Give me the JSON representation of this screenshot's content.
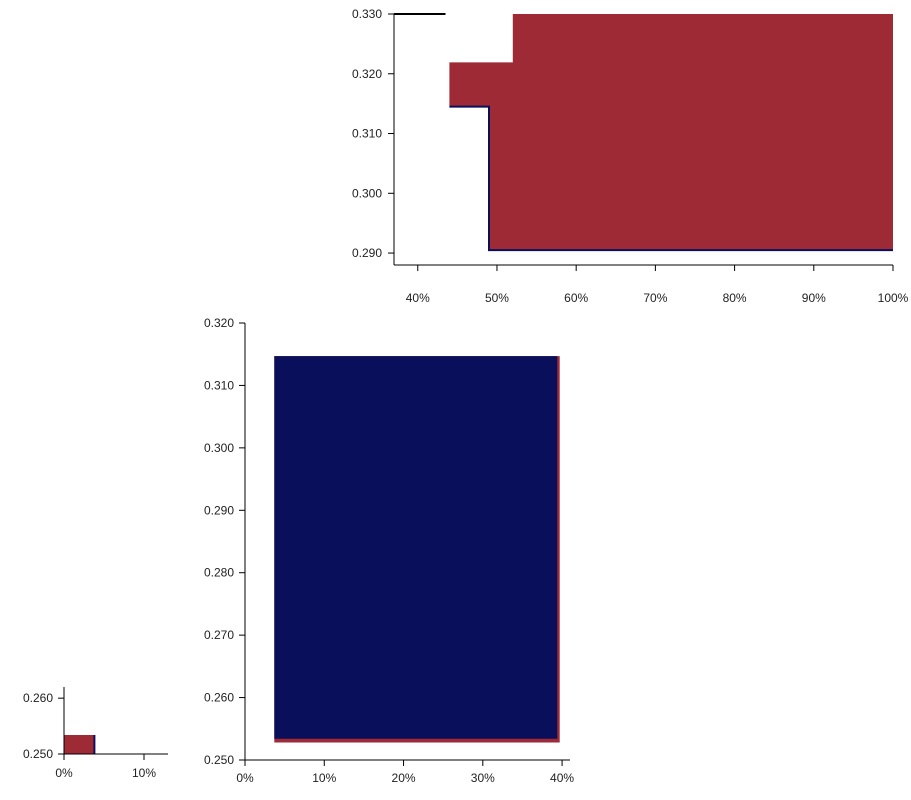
{
  "chart_data": [
    {
      "type": "area",
      "xlim": [
        0.37,
        1.0
      ],
      "ylim": [
        0.288,
        0.33
      ],
      "xticks": [
        0.4,
        0.5,
        0.6,
        0.7,
        0.8,
        0.9,
        1.0
      ],
      "xtick_labels": [
        "40%",
        "50%",
        "60%",
        "70%",
        "80%",
        "90%",
        "100%"
      ],
      "yticks": [
        0.29,
        0.3,
        0.31,
        0.32,
        0.33
      ],
      "ytick_labels": [
        "0.290",
        "0.300",
        "0.310",
        "0.320",
        "0.330"
      ],
      "grid": false,
      "regions": [
        {
          "color": "#9e2a36",
          "points": [
            [
              0.52,
              0.33
            ],
            [
              1.0,
              0.33
            ],
            [
              1.0,
              0.2905
            ],
            [
              0.49,
              0.2905
            ],
            [
              0.49,
              0.3145
            ],
            [
              0.44,
              0.3145
            ],
            [
              0.44,
              0.3219
            ],
            [
              0.52,
              0.3219
            ]
          ]
        }
      ],
      "outlines": [
        {
          "color": "#0a0f5c",
          "points": [
            [
              0.44,
              0.3145
            ],
            [
              0.49,
              0.3145
            ],
            [
              0.49,
              0.2905
            ],
            [
              1.0,
              0.2905
            ]
          ]
        },
        {
          "color": "#000000",
          "points": [
            [
              0.37,
              0.33
            ],
            [
              0.435,
              0.33
            ]
          ]
        }
      ]
    },
    {
      "type": "area",
      "xlim": [
        0.0,
        0.41
      ],
      "ylim": [
        0.25,
        0.32
      ],
      "xticks": [
        0.0,
        0.1,
        0.2,
        0.3,
        0.4
      ],
      "xtick_labels": [
        "0%",
        "10%",
        "20%",
        "30%",
        "40%"
      ],
      "yticks": [
        0.25,
        0.26,
        0.27,
        0.28,
        0.29,
        0.3,
        0.31,
        0.32
      ],
      "ytick_labels": [
        "0.250",
        "0.260",
        "0.270",
        "0.280",
        "0.290",
        "0.300",
        "0.310",
        "0.320"
      ],
      "grid": false,
      "regions": [
        {
          "color": "#9e2a36",
          "points": [
            [
              0.037,
              0.3147
            ],
            [
              0.397,
              0.3147
            ],
            [
              0.397,
              0.2528
            ],
            [
              0.037,
              0.2528
            ]
          ]
        },
        {
          "color": "#0a0f5c",
          "points": [
            [
              0.037,
              0.3147
            ],
            [
              0.394,
              0.3147
            ],
            [
              0.394,
              0.2534
            ],
            [
              0.037,
              0.2534
            ]
          ]
        }
      ],
      "outlines": []
    },
    {
      "type": "area",
      "xlim": [
        0.0,
        0.13
      ],
      "ylim": [
        0.25,
        0.262
      ],
      "xticks": [
        0.0,
        0.1
      ],
      "xtick_labels": [
        "0%",
        "10%"
      ],
      "yticks": [
        0.25,
        0.26
      ],
      "ytick_labels": [
        "0.250",
        "0.260"
      ],
      "grid": false,
      "regions": [
        {
          "color": "#9e2a36",
          "points": [
            [
              0.0,
              0.2534
            ],
            [
              0.038,
              0.2534
            ],
            [
              0.038,
              0.25
            ],
            [
              0.0,
              0.25
            ]
          ]
        }
      ],
      "outlines": [
        {
          "color": "#0a0f5c",
          "points": [
            [
              0.038,
              0.2534
            ],
            [
              0.038,
              0.25
            ]
          ]
        }
      ]
    }
  ]
}
